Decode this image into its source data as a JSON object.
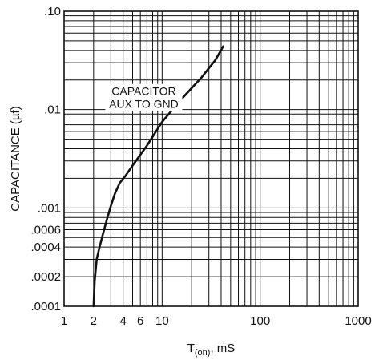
{
  "chart_data": {
    "type": "line",
    "xscale": "log",
    "yscale": "log",
    "xlim": [
      1,
      1000
    ],
    "ylim": [
      0.0001,
      0.1
    ],
    "grid": true,
    "xlabel": {
      "main": "T",
      "sub": "(on)",
      "suffix": ", mS"
    },
    "ylabel": "CAPACITANCE (µf)",
    "x_ticks": [
      {
        "value": 1,
        "label": "1"
      },
      {
        "value": 2,
        "label": "2"
      },
      {
        "value": 4,
        "label": "4"
      },
      {
        "value": 6,
        "label": "6"
      },
      {
        "value": 10,
        "label": "10"
      },
      {
        "value": 100,
        "label": "100"
      },
      {
        "value": 1000,
        "label": "1000"
      }
    ],
    "y_ticks": [
      {
        "value": 0.0001,
        "label": ".0001"
      },
      {
        "value": 0.0002,
        "label": ".0002"
      },
      {
        "value": 0.0004,
        "label": ".0004"
      },
      {
        "value": 0.0006,
        "label": ".0006"
      },
      {
        "value": 0.001,
        "label": ".001"
      },
      {
        "value": 0.01,
        "label": ".01"
      },
      {
        "value": 0.1,
        "label": ".10"
      }
    ],
    "annotation": {
      "lines": [
        "CAPACITOR",
        "AUX TO GND"
      ],
      "at": {
        "x": 6.5,
        "y": 0.01
      }
    },
    "series": [
      {
        "color": "#111111",
        "x": [
          2.0,
          2.05,
          2.15,
          2.3,
          2.5,
          2.75,
          3.0,
          3.3,
          3.7,
          4.2,
          5.0,
          7.0,
          10.0,
          16.0,
          25.0,
          35.0,
          42.0
        ],
        "y": [
          0.0001,
          0.00018,
          0.0003,
          0.0004,
          0.00055,
          0.00078,
          0.00105,
          0.0014,
          0.0018,
          0.0021,
          0.0027,
          0.0043,
          0.0075,
          0.013,
          0.021,
          0.032,
          0.044
        ]
      }
    ]
  }
}
